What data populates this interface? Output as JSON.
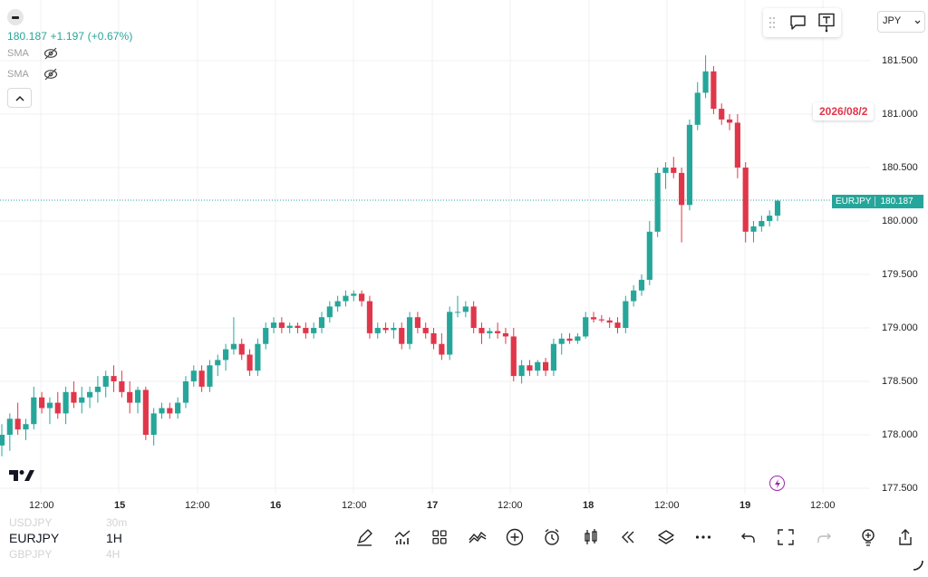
{
  "header": {
    "price": "180.187",
    "change": "+1.197",
    "change_pct": "(+0.67%)",
    "indicators": [
      {
        "label": "SMA",
        "icon": "eye-off-icon"
      },
      {
        "label": "SMA",
        "icon": "eye-off-icon"
      }
    ]
  },
  "top_toolbar": {
    "items": [
      "drag-handle-icon",
      "comment-icon",
      "text-tool-icon"
    ]
  },
  "currency_select": {
    "value": "JPY"
  },
  "price_axis": {
    "labels": [
      "181.500",
      "181.000",
      "180.500",
      "180.000",
      "179.500",
      "179.000",
      "178.500",
      "178.000",
      "177.500"
    ]
  },
  "time_axis": {
    "labels": [
      "12:00",
      "15",
      "12:00",
      "16",
      "12:00",
      "17",
      "12:00",
      "18",
      "12:00",
      "19",
      "12:00"
    ]
  },
  "date_badge": "2026/08/2",
  "symbol_badge": {
    "symbol": "EURJPY",
    "price": "180.187"
  },
  "bottom": {
    "symbols": {
      "prev": "USDJPY",
      "current": "EURJPY",
      "next": "GBPJPY"
    },
    "intervals": {
      "prev": "30m",
      "current": "1H",
      "next": "4H"
    },
    "tools": [
      "pen-icon",
      "indicators-icon",
      "grid-icon",
      "compare-icon",
      "add-circle-icon",
      "alarm-icon",
      "candles-icon",
      "rewind-icon",
      "layers-icon",
      "more-icon",
      "undo-icon",
      "fullscreen-icon",
      "redo-icon",
      "idea-bulb-icon",
      "share-icon"
    ]
  },
  "colors": {
    "up": "#26a69a",
    "down": "#e0364a",
    "grid": "#f0f0f0"
  },
  "chart_data": {
    "type": "candlestick",
    "symbol": "EURJPY",
    "interval": "1H",
    "ylim": [
      177.45,
      181.65
    ],
    "candles": [
      [
        177.9,
        178.1,
        177.8,
        178.0
      ],
      [
        178.0,
        178.2,
        177.85,
        178.15
      ],
      [
        178.15,
        178.3,
        178.0,
        178.05
      ],
      [
        178.05,
        178.15,
        177.95,
        178.1
      ],
      [
        178.1,
        178.45,
        178.05,
        178.35
      ],
      [
        178.35,
        178.4,
        178.2,
        178.25
      ],
      [
        178.25,
        178.35,
        178.1,
        178.3
      ],
      [
        178.3,
        178.4,
        178.15,
        178.2
      ],
      [
        178.2,
        178.45,
        178.1,
        178.4
      ],
      [
        178.4,
        178.5,
        178.25,
        178.3
      ],
      [
        178.3,
        178.45,
        178.2,
        178.35
      ],
      [
        178.35,
        178.45,
        178.25,
        178.4
      ],
      [
        178.4,
        178.55,
        178.3,
        178.45
      ],
      [
        178.45,
        178.6,
        178.35,
        178.55
      ],
      [
        178.55,
        178.65,
        178.4,
        178.5
      ],
      [
        178.5,
        178.6,
        178.35,
        178.4
      ],
      [
        178.4,
        178.5,
        178.2,
        178.3
      ],
      [
        178.3,
        178.45,
        178.2,
        178.42
      ],
      [
        178.42,
        178.45,
        177.95,
        178.0
      ],
      [
        178.0,
        178.25,
        177.9,
        178.2
      ],
      [
        178.2,
        178.3,
        178.15,
        178.25
      ],
      [
        178.25,
        178.3,
        178.15,
        178.2
      ],
      [
        178.2,
        178.35,
        178.15,
        178.3
      ],
      [
        178.3,
        178.55,
        178.25,
        178.5
      ],
      [
        178.5,
        178.65,
        178.45,
        178.6
      ],
      [
        178.6,
        178.65,
        178.4,
        178.45
      ],
      [
        178.45,
        178.7,
        178.4,
        178.65
      ],
      [
        178.65,
        178.75,
        178.55,
        178.7
      ],
      [
        178.7,
        178.85,
        178.6,
        178.8
      ],
      [
        178.8,
        179.1,
        178.75,
        178.85
      ],
      [
        178.85,
        178.9,
        178.7,
        178.75
      ],
      [
        178.75,
        178.8,
        178.55,
        178.6
      ],
      [
        178.6,
        178.9,
        178.55,
        178.85
      ],
      [
        178.85,
        179.05,
        178.8,
        179.0
      ],
      [
        179.0,
        179.1,
        178.95,
        179.05
      ],
      [
        179.05,
        179.1,
        178.95,
        179.0
      ],
      [
        179.0,
        179.05,
        178.95,
        179.02
      ],
      [
        179.02,
        179.05,
        178.95,
        179.0
      ],
      [
        179.0,
        179.05,
        178.9,
        178.95
      ],
      [
        178.95,
        179.05,
        178.9,
        179.0
      ],
      [
        179.0,
        179.15,
        178.95,
        179.1
      ],
      [
        179.1,
        179.25,
        179.05,
        179.2
      ],
      [
        179.2,
        179.3,
        179.15,
        179.25
      ],
      [
        179.25,
        179.35,
        179.2,
        179.3
      ],
      [
        179.3,
        179.35,
        179.25,
        179.32
      ],
      [
        179.32,
        179.35,
        179.2,
        179.25
      ],
      [
        179.25,
        179.3,
        178.9,
        178.95
      ],
      [
        178.95,
        179.05,
        178.9,
        179.0
      ],
      [
        179.0,
        179.05,
        178.95,
        178.98
      ],
      [
        178.98,
        179.05,
        178.9,
        179.0
      ],
      [
        179.0,
        179.05,
        178.8,
        178.85
      ],
      [
        178.85,
        179.15,
        178.8,
        179.1
      ],
      [
        179.1,
        179.15,
        178.95,
        179.0
      ],
      [
        179.0,
        179.05,
        178.9,
        178.95
      ],
      [
        178.95,
        179.0,
        178.8,
        178.85
      ],
      [
        178.85,
        178.95,
        178.7,
        178.75
      ],
      [
        178.75,
        179.2,
        178.7,
        179.15
      ],
      [
        179.15,
        179.3,
        179.1,
        179.15
      ],
      [
        179.15,
        179.25,
        179.1,
        179.2
      ],
      [
        179.2,
        179.25,
        178.95,
        179.0
      ],
      [
        179.0,
        179.05,
        178.85,
        178.95
      ],
      [
        178.95,
        179.0,
        178.9,
        178.97
      ],
      [
        178.97,
        179.05,
        178.9,
        178.95
      ],
      [
        178.95,
        179.0,
        178.85,
        178.92
      ],
      [
        178.92,
        179.0,
        178.5,
        178.55
      ],
      [
        178.55,
        178.7,
        178.48,
        178.65
      ],
      [
        178.65,
        178.7,
        178.55,
        178.6
      ],
      [
        178.6,
        178.7,
        178.55,
        178.68
      ],
      [
        178.68,
        178.72,
        178.55,
        178.6
      ],
      [
        178.6,
        178.9,
        178.55,
        178.85
      ],
      [
        178.85,
        178.95,
        178.75,
        178.9
      ],
      [
        178.9,
        178.95,
        178.85,
        178.88
      ],
      [
        178.88,
        178.95,
        178.85,
        178.92
      ],
      [
        178.92,
        179.15,
        178.9,
        179.1
      ],
      [
        179.1,
        179.15,
        179.05,
        179.08
      ],
      [
        179.08,
        179.12,
        179.05,
        179.07
      ],
      [
        179.07,
        179.1,
        179.0,
        179.05
      ],
      [
        179.05,
        179.1,
        178.95,
        179.0
      ],
      [
        179.0,
        179.3,
        178.95,
        179.25
      ],
      [
        179.25,
        179.4,
        179.2,
        179.35
      ],
      [
        179.35,
        179.5,
        179.3,
        179.45
      ],
      [
        179.45,
        180.0,
        179.4,
        179.9
      ],
      [
        179.9,
        180.5,
        179.85,
        180.45
      ],
      [
        180.45,
        180.55,
        180.3,
        180.5
      ],
      [
        180.5,
        180.6,
        180.4,
        180.45
      ],
      [
        180.45,
        180.5,
        179.8,
        180.15
      ],
      [
        180.15,
        180.95,
        180.1,
        180.9
      ],
      [
        180.9,
        181.3,
        180.85,
        181.2
      ],
      [
        181.2,
        181.55,
        181.15,
        181.4
      ],
      [
        181.4,
        181.45,
        181.0,
        181.05
      ],
      [
        181.05,
        181.1,
        180.9,
        180.95
      ],
      [
        180.95,
        181.0,
        180.85,
        180.92
      ],
      [
        180.92,
        181.0,
        180.4,
        180.5
      ],
      [
        180.5,
        180.55,
        179.8,
        179.9
      ],
      [
        179.9,
        180.0,
        179.8,
        179.95
      ],
      [
        179.95,
        180.05,
        179.9,
        180.0
      ],
      [
        180.0,
        180.1,
        179.95,
        180.05
      ],
      [
        180.05,
        180.2,
        180.0,
        180.19
      ]
    ]
  }
}
